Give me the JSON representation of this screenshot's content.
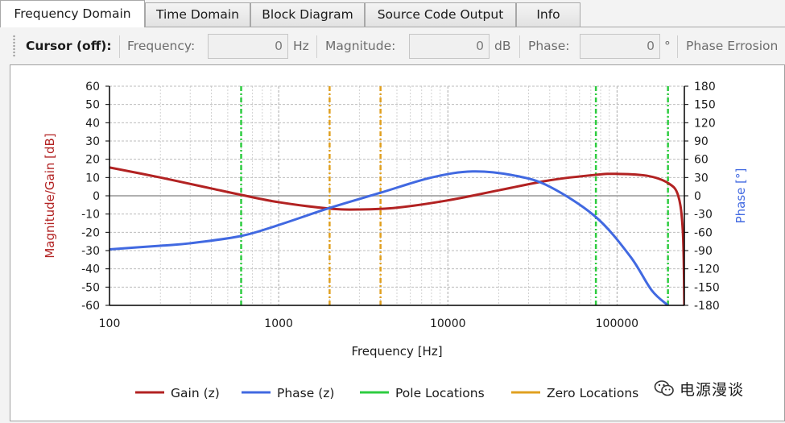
{
  "tabs": [
    "Frequency Domain",
    "Time Domain",
    "Block Diagram",
    "Source Code Output",
    "Info"
  ],
  "active_tab": "Frequency Domain",
  "toolbar": {
    "cursor_label": "Cursor (off):",
    "frequency_label": "Frequency:",
    "frequency_value": "0",
    "frequency_unit": "Hz",
    "magnitude_label": "Magnitude:",
    "magnitude_value": "0",
    "magnitude_unit": "dB",
    "phase_label": "Phase:",
    "phase_value": "0",
    "phase_unit": "°",
    "phase_error_label": "Phase Errosion"
  },
  "watermark": {
    "text": "电源漫谈",
    "icon": "wechat-icon"
  },
  "colors": {
    "gain": "#b22222",
    "phase": "#4169e1",
    "pole": "#2ecc40",
    "zero": "#e0a020",
    "zero_line": "#b0b0b0",
    "grid": "#c8c8c8"
  },
  "chart_data": {
    "type": "line",
    "xlabel": "Frequency [Hz]",
    "ylabel": "Magnitude/Gain [dB]",
    "y2label": "Phase [°]",
    "xscale": "log",
    "xlim": [
      100,
      250000
    ],
    "ylim": [
      -60,
      60
    ],
    "y2lim": [
      -180,
      180
    ],
    "x_ticks": [
      100,
      1000,
      10000,
      100000
    ],
    "x_tick_labels": [
      "100",
      "1000",
      "10000",
      "100000"
    ],
    "y_ticks": [
      60,
      50,
      40,
      30,
      20,
      10,
      0,
      -10,
      -20,
      -30,
      -40,
      -50,
      -60
    ],
    "y2_ticks": [
      180,
      150,
      120,
      90,
      60,
      30,
      0,
      -30,
      -60,
      -90,
      -120,
      -150,
      -180
    ],
    "grid": true,
    "legend_position": "bottom",
    "series": [
      {
        "name": "Gain (z)",
        "axis": "left",
        "x": [
          100,
          200,
          400,
          600,
          1000,
          2000,
          3000,
          5000,
          10000,
          20000,
          40000,
          75000,
          100000,
          150000,
          200000,
          230000,
          245000,
          250000
        ],
        "values": [
          15.5,
          10,
          4,
          0.5,
          -3.5,
          -7,
          -7.5,
          -6.5,
          -2.5,
          3,
          8.5,
          11.5,
          12,
          11,
          7,
          0,
          -20,
          -60
        ]
      },
      {
        "name": "Phase (z)",
        "axis": "right",
        "x": [
          100,
          200,
          300,
          600,
          1000,
          2000,
          4000,
          8000,
          14000,
          25000,
          40000,
          75000,
          120000,
          160000,
          200000
        ],
        "values": [
          -88,
          -82,
          -78,
          -66,
          -48,
          -20,
          5,
          30,
          40,
          33,
          15,
          -35,
          -100,
          -155,
          -180
        ]
      }
    ],
    "pole_locations": [
      600,
      75000,
      200000
    ],
    "zero_locations": [
      2000,
      4000
    ],
    "legend": [
      {
        "name": "Gain (z)",
        "color": "#b22222",
        "style": "solid"
      },
      {
        "name": "Phase (z)",
        "color": "#4169e1",
        "style": "solid"
      },
      {
        "name": "Pole Locations",
        "color": "#2ecc40",
        "style": "solid"
      },
      {
        "name": "Zero Locations",
        "color": "#e0a020",
        "style": "solid"
      }
    ]
  }
}
